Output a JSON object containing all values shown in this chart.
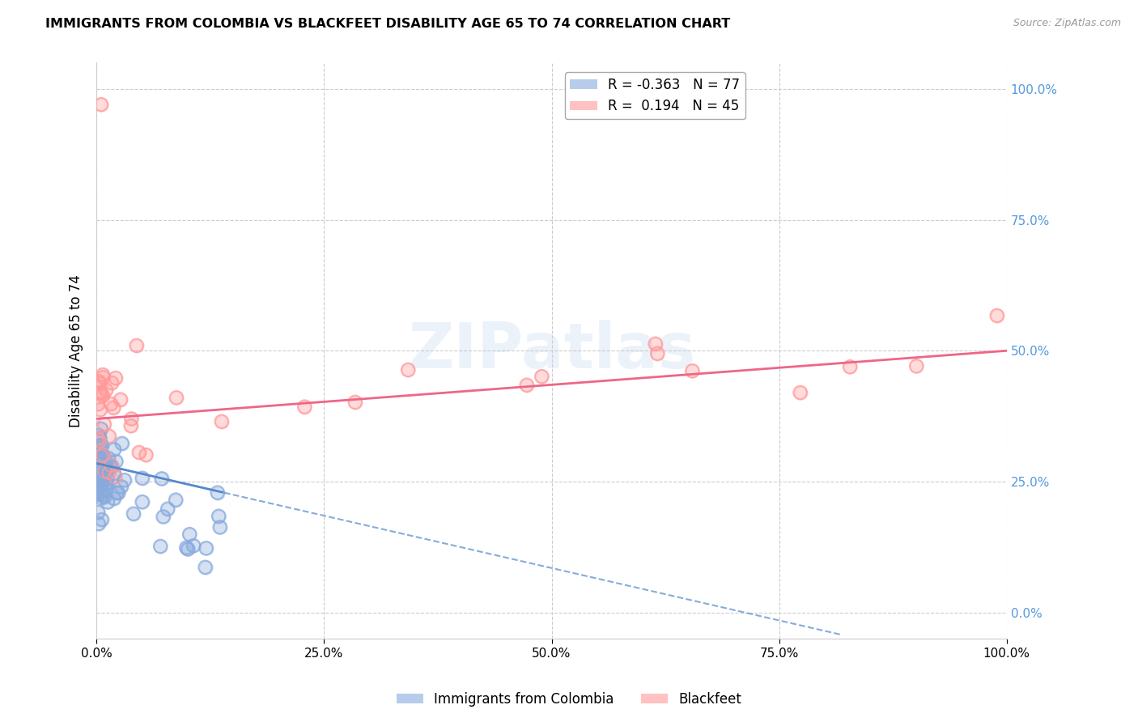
{
  "title": "IMMIGRANTS FROM COLOMBIA VS BLACKFEET DISABILITY AGE 65 TO 74 CORRELATION CHART",
  "source": "Source: ZipAtlas.com",
  "ylabel": "Disability Age 65 to 74",
  "legend_colombia": "Immigrants from Colombia",
  "legend_blackfeet": "Blackfeet",
  "R_colombia": -0.363,
  "N_colombia": 77,
  "R_blackfeet": 0.194,
  "N_blackfeet": 45,
  "color_colombia": "#88AADD",
  "color_blackfeet": "#FF9999",
  "color_trend_colombia": "#5588CC",
  "color_trend_blackfeet": "#EE6688",
  "watermark": "ZIPatlas",
  "xlim": [
    0.0,
    1.0
  ],
  "ylim": [
    -0.05,
    1.05
  ],
  "yticks": [
    0.0,
    0.25,
    0.5,
    0.75,
    1.0
  ],
  "xticks": [
    0.0,
    0.25,
    0.5,
    0.75,
    1.0
  ]
}
